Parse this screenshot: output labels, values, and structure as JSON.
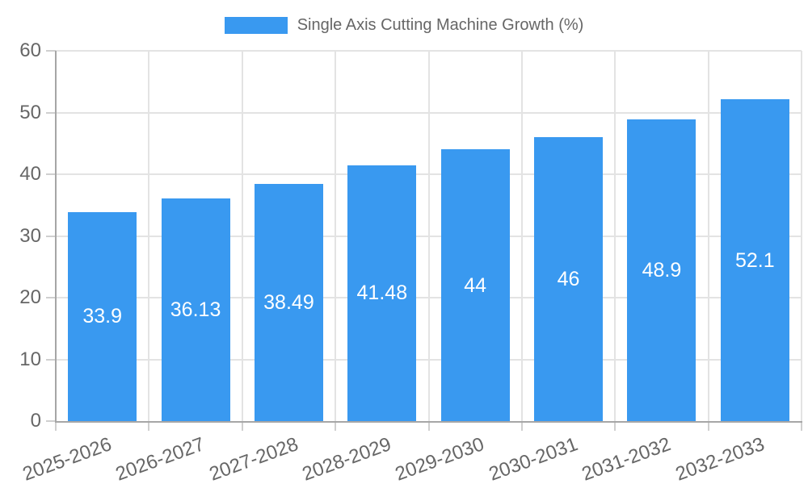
{
  "legend": {
    "label": "Single Axis Cutting Machine Growth (%)"
  },
  "chart_data": {
    "type": "bar",
    "title": "Single Axis Cutting Machine Growth (%)",
    "categories": [
      "2025-2026",
      "2026-2027",
      "2027-2028",
      "2028-2029",
      "2029-2030",
      "2030-2031",
      "2031-2032",
      "2032-2033"
    ],
    "values": [
      33.9,
      36.13,
      38.49,
      41.48,
      44,
      46,
      48.9,
      52.1
    ],
    "value_labels": [
      "33.9",
      "36.13",
      "38.49",
      "41.48",
      "44",
      "46",
      "48.9",
      "52.1"
    ],
    "xlabel": "",
    "ylabel": "",
    "ylim": [
      0,
      60
    ],
    "y_ticks": [
      0,
      10,
      20,
      30,
      40,
      50,
      60
    ],
    "grid": true,
    "legend_position": "top",
    "colors": {
      "bar": "#3999f0",
      "value_label": "#ffffff",
      "axis_text": "#666666",
      "gridline": "#e3e3e3",
      "axis_line": "#a6a6a6",
      "tick_mark": "#cfcfcf"
    }
  }
}
